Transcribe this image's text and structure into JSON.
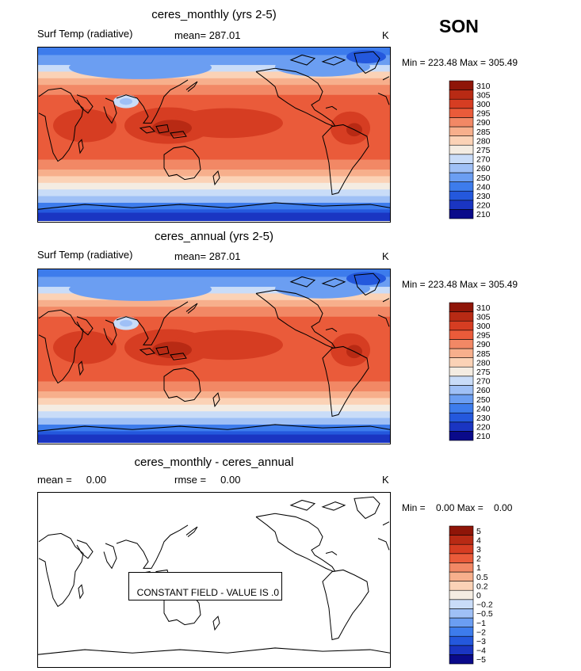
{
  "season": "SON",
  "colors": {
    "temp_scale": [
      "#0a0a8a",
      "#1a35c2",
      "#2458dd",
      "#3d7cec",
      "#6b9ef2",
      "#9fc0f6",
      "#c9dcf8",
      "#f4ece2",
      "#fbd2b6",
      "#f7af8c",
      "#f28865",
      "#ea5b3a",
      "#d63d22",
      "#b82a14",
      "#8f1508"
    ],
    "diff_scale": [
      "#0a0a8a",
      "#1a35c2",
      "#2458dd",
      "#3d7cec",
      "#6b9ef2",
      "#9fc0f6",
      "#c9dcf8",
      "#f4ece2",
      "#fbd2b6",
      "#f7af8c",
      "#f28865",
      "#ea5b3a",
      "#d63d22",
      "#b82a14",
      "#8f1508"
    ]
  },
  "panels": [
    {
      "title": "ceres_monthly (yrs 2-5)",
      "left_label": "Surf Temp (radiative)",
      "center_label": "mean= 287.01",
      "units": "K",
      "minmax": "Min = 223.48 Max = 305.49",
      "constant_note": ""
    },
    {
      "title": "ceres_annual (yrs 2-5)",
      "left_label": "Surf Temp (radiative)",
      "center_label": "mean= 287.01",
      "units": "K",
      "minmax": "Min = 223.48 Max = 305.49",
      "constant_note": ""
    },
    {
      "title": "ceres_monthly - ceres_annual",
      "left_label": "mean =     0.00",
      "center_label": "rmse =     0.00",
      "units": "K",
      "minmax": "Min =    0.00 Max =    0.00",
      "constant_note": "CONSTANT FIELD - VALUE IS .0"
    }
  ],
  "chart_data": [
    {
      "type": "heatmap",
      "title": "ceres_monthly (yrs 2-5)",
      "variable": "Surf Temp (radiative)",
      "units": "K",
      "mean": 287.01,
      "min": 223.48,
      "max": 305.49,
      "colorbar_levels": [
        210,
        220,
        230,
        240,
        250,
        260,
        270,
        275,
        280,
        285,
        290,
        295,
        300,
        305,
        310
      ],
      "colorbar_labels": [
        "210",
        "220",
        "230",
        "240",
        "250",
        "260",
        "270",
        "275",
        "280",
        "285",
        "290",
        "295",
        "300",
        "305",
        "310"
      ]
    },
    {
      "type": "heatmap",
      "title": "ceres_annual (yrs 2-5)",
      "variable": "Surf Temp (radiative)",
      "units": "K",
      "mean": 287.01,
      "min": 223.48,
      "max": 305.49,
      "colorbar_levels": [
        210,
        220,
        230,
        240,
        250,
        260,
        270,
        275,
        280,
        285,
        290,
        295,
        300,
        305,
        310
      ],
      "colorbar_labels": [
        "210",
        "220",
        "230",
        "240",
        "250",
        "260",
        "270",
        "275",
        "280",
        "285",
        "290",
        "295",
        "300",
        "305",
        "310"
      ]
    },
    {
      "type": "heatmap",
      "title": "ceres_monthly - ceres_annual",
      "units": "K",
      "mean": 0.0,
      "rmse": 0.0,
      "min": 0.0,
      "max": 0.0,
      "colorbar_levels": [
        -5,
        -4,
        -3,
        -2,
        -1,
        -0.5,
        -0.2,
        0,
        0.2,
        0.5,
        1,
        2,
        3,
        4,
        5
      ],
      "colorbar_labels": [
        "−5",
        "−4",
        "−3",
        "−2",
        "−1",
        "−0.5",
        "−0.2",
        "0",
        "0.2",
        "0.5",
        "1",
        "2",
        "3",
        "4",
        "5"
      ],
      "annotation": "CONSTANT FIELD - VALUE IS .0"
    }
  ]
}
